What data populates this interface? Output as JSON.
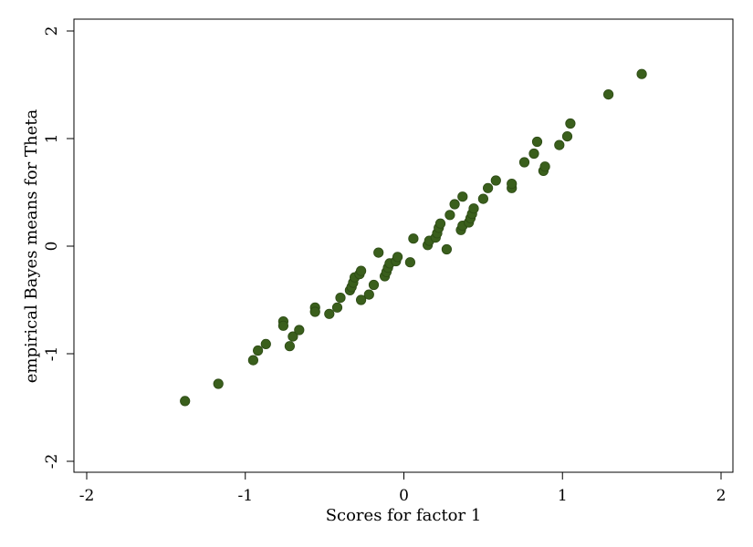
{
  "chart_data": {
    "type": "scatter",
    "xlabel": "Scores for factor 1",
    "ylabel": "empirical Bayes means for Theta",
    "xlim": [
      -2,
      2
    ],
    "ylim": [
      -2,
      2
    ],
    "xticks": [
      "-2",
      "-1",
      "0",
      "1",
      "2"
    ],
    "yticks": [
      "-2",
      "-1",
      "0",
      "1",
      "2"
    ],
    "grid": false,
    "legend": "none",
    "marker_color": "#3a5f1c",
    "points": [
      [
        -1.38,
        -1.44
      ],
      [
        -1.17,
        -1.28
      ],
      [
        -0.95,
        -1.06
      ],
      [
        -0.92,
        -0.97
      ],
      [
        -0.87,
        -0.91
      ],
      [
        -0.76,
        -0.7
      ],
      [
        -0.76,
        -0.74
      ],
      [
        -0.72,
        -0.93
      ],
      [
        -0.7,
        -0.84
      ],
      [
        -0.66,
        -0.78
      ],
      [
        -0.56,
        -0.57
      ],
      [
        -0.56,
        -0.61
      ],
      [
        -0.47,
        -0.63
      ],
      [
        -0.42,
        -0.57
      ],
      [
        -0.4,
        -0.48
      ],
      [
        -0.34,
        -0.41
      ],
      [
        -0.33,
        -0.38
      ],
      [
        -0.32,
        -0.34
      ],
      [
        -0.31,
        -0.29
      ],
      [
        -0.28,
        -0.26
      ],
      [
        -0.27,
        -0.23
      ],
      [
        -0.27,
        -0.5
      ],
      [
        -0.22,
        -0.45
      ],
      [
        -0.19,
        -0.36
      ],
      [
        -0.16,
        -0.06
      ],
      [
        -0.12,
        -0.28
      ],
      [
        -0.11,
        -0.24
      ],
      [
        -0.1,
        -0.2
      ],
      [
        -0.09,
        -0.16
      ],
      [
        -0.05,
        -0.14
      ],
      [
        -0.04,
        -0.1
      ],
      [
        0.04,
        -0.15
      ],
      [
        0.06,
        0.07
      ],
      [
        0.15,
        0.01
      ],
      [
        0.16,
        0.05
      ],
      [
        0.2,
        0.08
      ],
      [
        0.21,
        0.12
      ],
      [
        0.22,
        0.17
      ],
      [
        0.23,
        0.21
      ],
      [
        0.27,
        -0.03
      ],
      [
        0.29,
        0.29
      ],
      [
        0.32,
        0.39
      ],
      [
        0.36,
        0.15
      ],
      [
        0.37,
        0.19
      ],
      [
        0.37,
        0.46
      ],
      [
        0.41,
        0.22
      ],
      [
        0.42,
        0.26
      ],
      [
        0.43,
        0.3
      ],
      [
        0.44,
        0.35
      ],
      [
        0.5,
        0.44
      ],
      [
        0.53,
        0.54
      ],
      [
        0.58,
        0.61
      ],
      [
        0.68,
        0.54
      ],
      [
        0.68,
        0.58
      ],
      [
        0.76,
        0.78
      ],
      [
        0.82,
        0.86
      ],
      [
        0.84,
        0.97
      ],
      [
        0.88,
        0.7
      ],
      [
        0.89,
        0.74
      ],
      [
        0.98,
        0.94
      ],
      [
        1.03,
        1.02
      ],
      [
        1.05,
        1.14
      ],
      [
        1.29,
        1.41
      ],
      [
        1.5,
        1.6
      ]
    ]
  }
}
